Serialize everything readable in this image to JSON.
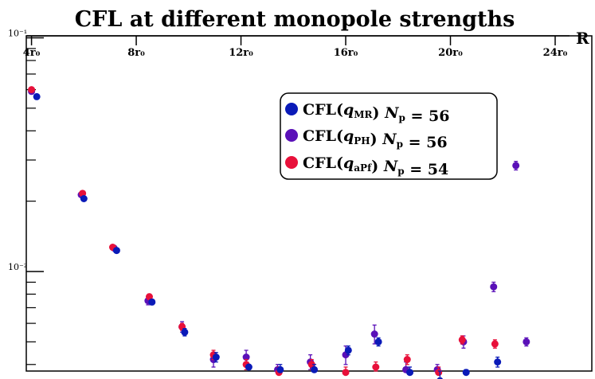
{
  "chart_data": {
    "type": "scatter",
    "title": "CFL at different monopole strengths",
    "xlabel": "R",
    "ylabel": "",
    "yscale": "log",
    "ylim": [
      0.00375,
      0.102
    ],
    "xlim": [
      3.8,
      25.4
    ],
    "x_ticks": [
      {
        "value": 4,
        "label": "4r₀"
      },
      {
        "value": 8,
        "label": "8r₀"
      },
      {
        "value": 12,
        "label": "12r₀"
      },
      {
        "value": 16,
        "label": "16r₀"
      },
      {
        "value": 20,
        "label": "20r₀"
      },
      {
        "value": 24,
        "label": "24r₀"
      }
    ],
    "y_ticks": [
      {
        "value": 0.1,
        "label": "10⁻¹"
      },
      {
        "value": 0.01,
        "label": "10⁻²"
      }
    ],
    "legend_position": "upper-center-right",
    "colors": {
      "mr": "#0a1ab8",
      "ph": "#5a10b8",
      "apf": "#e8103a"
    },
    "series": [
      {
        "name": "CFL(q_MR) N_p = 56",
        "legend_main": "CFL(",
        "legend_q": "q",
        "legend_sub": "MR",
        "legend_np": "N",
        "legend_np_sub": "p",
        "legend_value": "= 56",
        "color_key": "mr",
        "x": [
          4.2,
          6.0,
          7.25,
          8.6,
          9.85,
          11.05,
          12.3,
          13.5,
          14.8,
          16.1,
          17.25,
          18.45,
          19.6,
          20.6,
          21.8
        ],
        "y": [
          0.056,
          0.0205,
          0.0123,
          0.0074,
          0.0055,
          0.0043,
          0.0039,
          0.0038,
          0.0038,
          0.0046,
          0.005,
          0.0037,
          0.0034,
          0.0037,
          0.0041
        ],
        "err": [
          0.0009,
          0.0004,
          0.0002,
          0.0002,
          0.0002,
          0.0002,
          0.0001,
          0.0002,
          0.0002,
          0.0002,
          0.0002,
          0.0002,
          0.0001,
          0.0001,
          0.0002
        ]
      },
      {
        "name": "CFL(q_PH) N_p = 56",
        "legend_main": "CFL(",
        "legend_q": "q",
        "legend_sub": "PH",
        "legend_np": "N",
        "legend_np_sub": "p",
        "legend_value": "= 56",
        "color_key": "ph",
        "x": [
          4.0,
          5.9,
          7.15,
          8.45,
          9.75,
          10.95,
          12.2,
          13.4,
          14.65,
          16.0,
          17.1,
          18.3,
          19.5,
          20.5,
          21.65,
          22.5,
          22.9
        ],
        "y": [
          0.059,
          0.0213,
          0.0126,
          0.0075,
          0.0058,
          0.0042,
          0.0043,
          0.0038,
          0.0041,
          0.0044,
          0.0054,
          0.0038,
          0.0038,
          0.005,
          0.0086,
          0.0284,
          0.005
        ],
        "err": [
          0.0012,
          0.0004,
          0.0003,
          0.0003,
          0.0003,
          0.0003,
          0.0003,
          0.0002,
          0.0003,
          0.0004,
          0.0005,
          0.0003,
          0.0002,
          0.0003,
          0.0004,
          0.0012,
          0.0002
        ]
      },
      {
        "name": "CFL(q_aPf) N_p = 54",
        "legend_main": "CFL(",
        "legend_q": "q",
        "legend_sub": "aPf",
        "legend_np": "N",
        "legend_np_sub": "p",
        "legend_value": "= 54",
        "color_key": "apf",
        "x": [
          4.0,
          5.95,
          7.1,
          8.5,
          9.75,
          10.95,
          12.2,
          13.45,
          14.7,
          16.0,
          17.15,
          18.35,
          19.55,
          20.45,
          21.7
        ],
        "y": [
          0.06,
          0.0216,
          0.0127,
          0.0078,
          0.0058,
          0.0044,
          0.004,
          0.0037,
          0.004,
          0.0037,
          0.0039,
          0.0042,
          0.0037,
          0.0051,
          0.0049
        ],
        "err": [
          0.0005,
          0.0003,
          0.0002,
          0.0002,
          0.0002,
          0.0002,
          0.0002,
          0.0002,
          0.0002,
          0.0002,
          0.0002,
          0.0002,
          0.0002,
          0.0002,
          0.0002
        ]
      }
    ]
  }
}
